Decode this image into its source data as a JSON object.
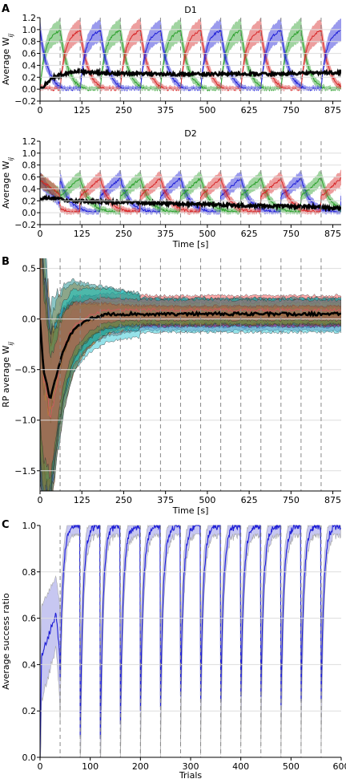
{
  "chart_data": [
    {
      "panel_label": "A",
      "title": "D1",
      "type": "line",
      "ylabel": "Average W_ij",
      "xlabel": "",
      "xlim": [
        0,
        900
      ],
      "ylim": [
        -0.2,
        1.2
      ],
      "xticks": [
        "0",
        "125",
        "250",
        "375",
        "500",
        "625",
        "750",
        "875"
      ],
      "yticks": [
        "−0.2",
        "0.0",
        "0.2",
        "0.4",
        "0.6",
        "0.8",
        "1.0",
        "1.2"
      ],
      "grid": "horizontal",
      "colors": {
        "green": "#2ca02c",
        "red": "#d62728",
        "blue": "#1f1fd6",
        "black": "#000000"
      },
      "cycle_period": 60,
      "cycle_order": [
        "green",
        "red",
        "blue"
      ],
      "peak_value": 1.0,
      "black_series": {
        "x": [
          0,
          40,
          100,
          200,
          300,
          400,
          500,
          600,
          700,
          800,
          880
        ],
        "y": [
          0.0,
          0.2,
          0.3,
          0.27,
          0.26,
          0.25,
          0.25,
          0.26,
          0.25,
          0.27,
          0.28
        ]
      }
    },
    {
      "title": "D2",
      "type": "line",
      "ylabel": "Average W_ij",
      "xlabel": "Time [s]",
      "xlim": [
        0,
        900
      ],
      "ylim": [
        -0.2,
        1.2
      ],
      "xticks": [
        "0",
        "125",
        "250",
        "375",
        "500",
        "625",
        "750",
        "875"
      ],
      "yticks": [
        "−0.2",
        "0.0",
        "0.2",
        "0.4",
        "0.6",
        "0.8",
        "1.0",
        "1.2"
      ],
      "grid": "horizontal",
      "colors": {
        "green": "#2ca02c",
        "red": "#d62728",
        "blue": "#1f1fd6",
        "black": "#000000"
      },
      "cycle_period": 60,
      "cycle_order": [
        "blue",
        "green",
        "red"
      ],
      "peak_value": 0.6,
      "black_series": {
        "x": [
          0,
          20,
          100,
          200,
          300,
          400,
          500,
          600,
          700,
          800,
          880
        ],
        "y": [
          0.22,
          0.25,
          0.2,
          0.18,
          0.17,
          0.15,
          0.14,
          0.12,
          0.11,
          0.1,
          0.08
        ]
      }
    },
    {
      "panel_label": "B",
      "type": "area",
      "ylabel": "RP average W_ij",
      "xlabel": "Time [s]",
      "xlim": [
        0,
        900
      ],
      "ylim": [
        -1.7,
        0.6
      ],
      "xticks": [
        "0",
        "125",
        "250",
        "375",
        "500",
        "625",
        "750",
        "875"
      ],
      "yticks": [
        "−1.5",
        "−1.0",
        "−0.5",
        "0.0",
        "0.5"
      ],
      "grid": "horizontal",
      "mean_series": {
        "x": [
          0,
          10,
          30,
          50,
          70,
          100,
          150,
          200,
          300,
          500,
          700,
          900
        ],
        "y": [
          0.0,
          -0.5,
          -0.8,
          -0.55,
          -0.3,
          -0.1,
          0.0,
          0.05,
          0.05,
          0.05,
          0.05,
          0.05
        ]
      }
    },
    {
      "panel_label": "C",
      "type": "line",
      "ylabel": "Average success ratio",
      "xlabel": "Trials",
      "xlim": [
        0,
        600
      ],
      "ylim": [
        0.0,
        1.0
      ],
      "xticks": [
        "0",
        "100",
        "200",
        "300",
        "400",
        "500",
        "600"
      ],
      "yticks": [
        "0.0",
        "0.2",
        "0.4",
        "0.6",
        "0.8",
        "1.0"
      ],
      "grid": "horizontal",
      "colors": {
        "line": "#1f1fd6",
        "band": "#b4b4ec"
      },
      "block_boundaries": [
        40,
        80,
        120,
        160,
        200,
        240,
        280,
        320,
        360,
        400,
        440,
        480,
        520,
        560
      ],
      "block_minimums": [
        0.35,
        0.1,
        0.08,
        0.15,
        0.2,
        0.22,
        0.25,
        0.25,
        0.25,
        0.25,
        0.25,
        0.22,
        0.25,
        0.25
      ]
    }
  ]
}
